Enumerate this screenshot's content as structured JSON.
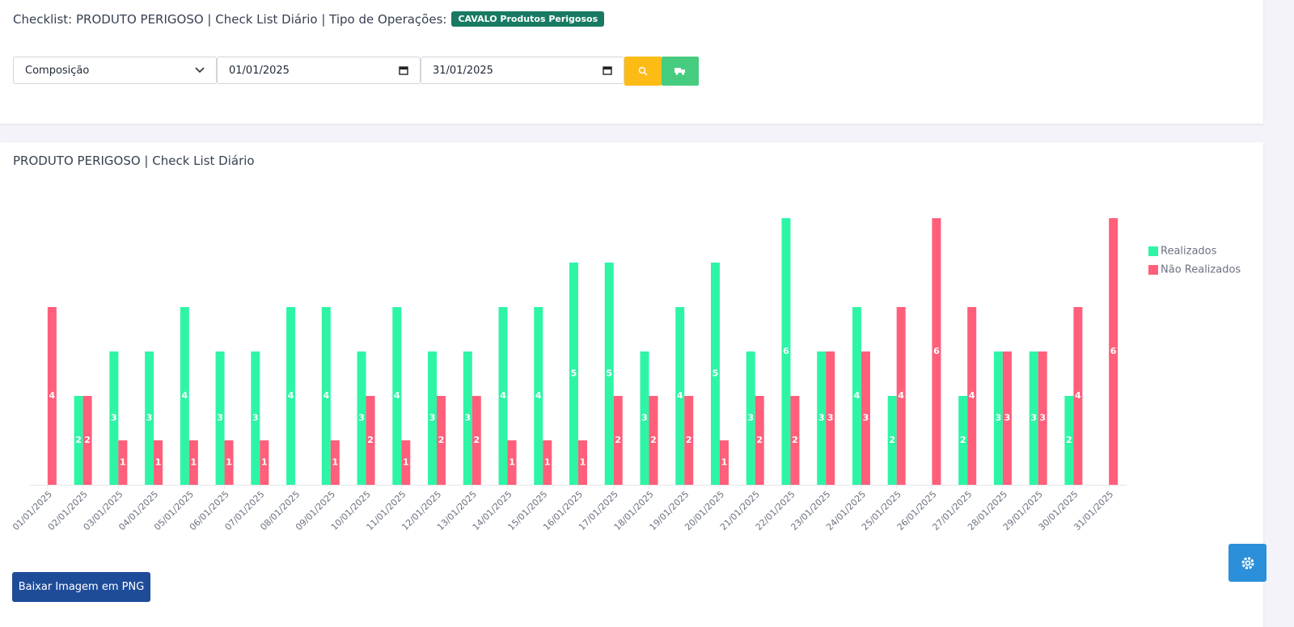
{
  "header": {
    "title": "Checklist: PRODUTO PERIGOSO | Check List Diário | Tipo de Operações:",
    "badge": "CAVALO Produtos Perigosos"
  },
  "filters": {
    "select": "Composição",
    "start_date": "01/01/2025",
    "end_date": "31/01/2025"
  },
  "chart_data": {
    "type": "bar",
    "title": "PRODUTO PERIGOSO | Check List Diário",
    "categories": [
      "01/01/2025",
      "02/01/2025",
      "03/01/2025",
      "04/01/2025",
      "05/01/2025",
      "06/01/2025",
      "07/01/2025",
      "08/01/2025",
      "09/01/2025",
      "10/01/2025",
      "11/01/2025",
      "12/01/2025",
      "13/01/2025",
      "14/01/2025",
      "15/01/2025",
      "16/01/2025",
      "17/01/2025",
      "18/01/2025",
      "19/01/2025",
      "20/01/2025",
      "21/01/2025",
      "22/01/2025",
      "23/01/2025",
      "24/01/2025",
      "25/01/2025",
      "26/01/2025",
      "27/01/2025",
      "28/01/2025",
      "29/01/2025",
      "30/01/2025",
      "31/01/2025"
    ],
    "series": [
      {
        "name": "Realizados",
        "color": "#2ef5a6",
        "values": [
          0,
          2,
          3,
          3,
          4,
          3,
          3,
          4,
          4,
          3,
          4,
          3,
          3,
          4,
          4,
          5,
          5,
          3,
          4,
          5,
          3,
          6,
          3,
          4,
          2,
          0,
          2,
          3,
          3,
          2,
          0
        ]
      },
      {
        "name": "Não Realizados",
        "color": "#ff5f7a",
        "values": [
          4,
          2,
          1,
          1,
          1,
          1,
          1,
          0,
          1,
          2,
          1,
          2,
          2,
          1,
          1,
          1,
          2,
          2,
          2,
          1,
          2,
          2,
          3,
          3,
          4,
          6,
          4,
          3,
          3,
          4,
          6
        ]
      }
    ]
  },
  "download_button": "Baixar Imagem em PNG"
}
